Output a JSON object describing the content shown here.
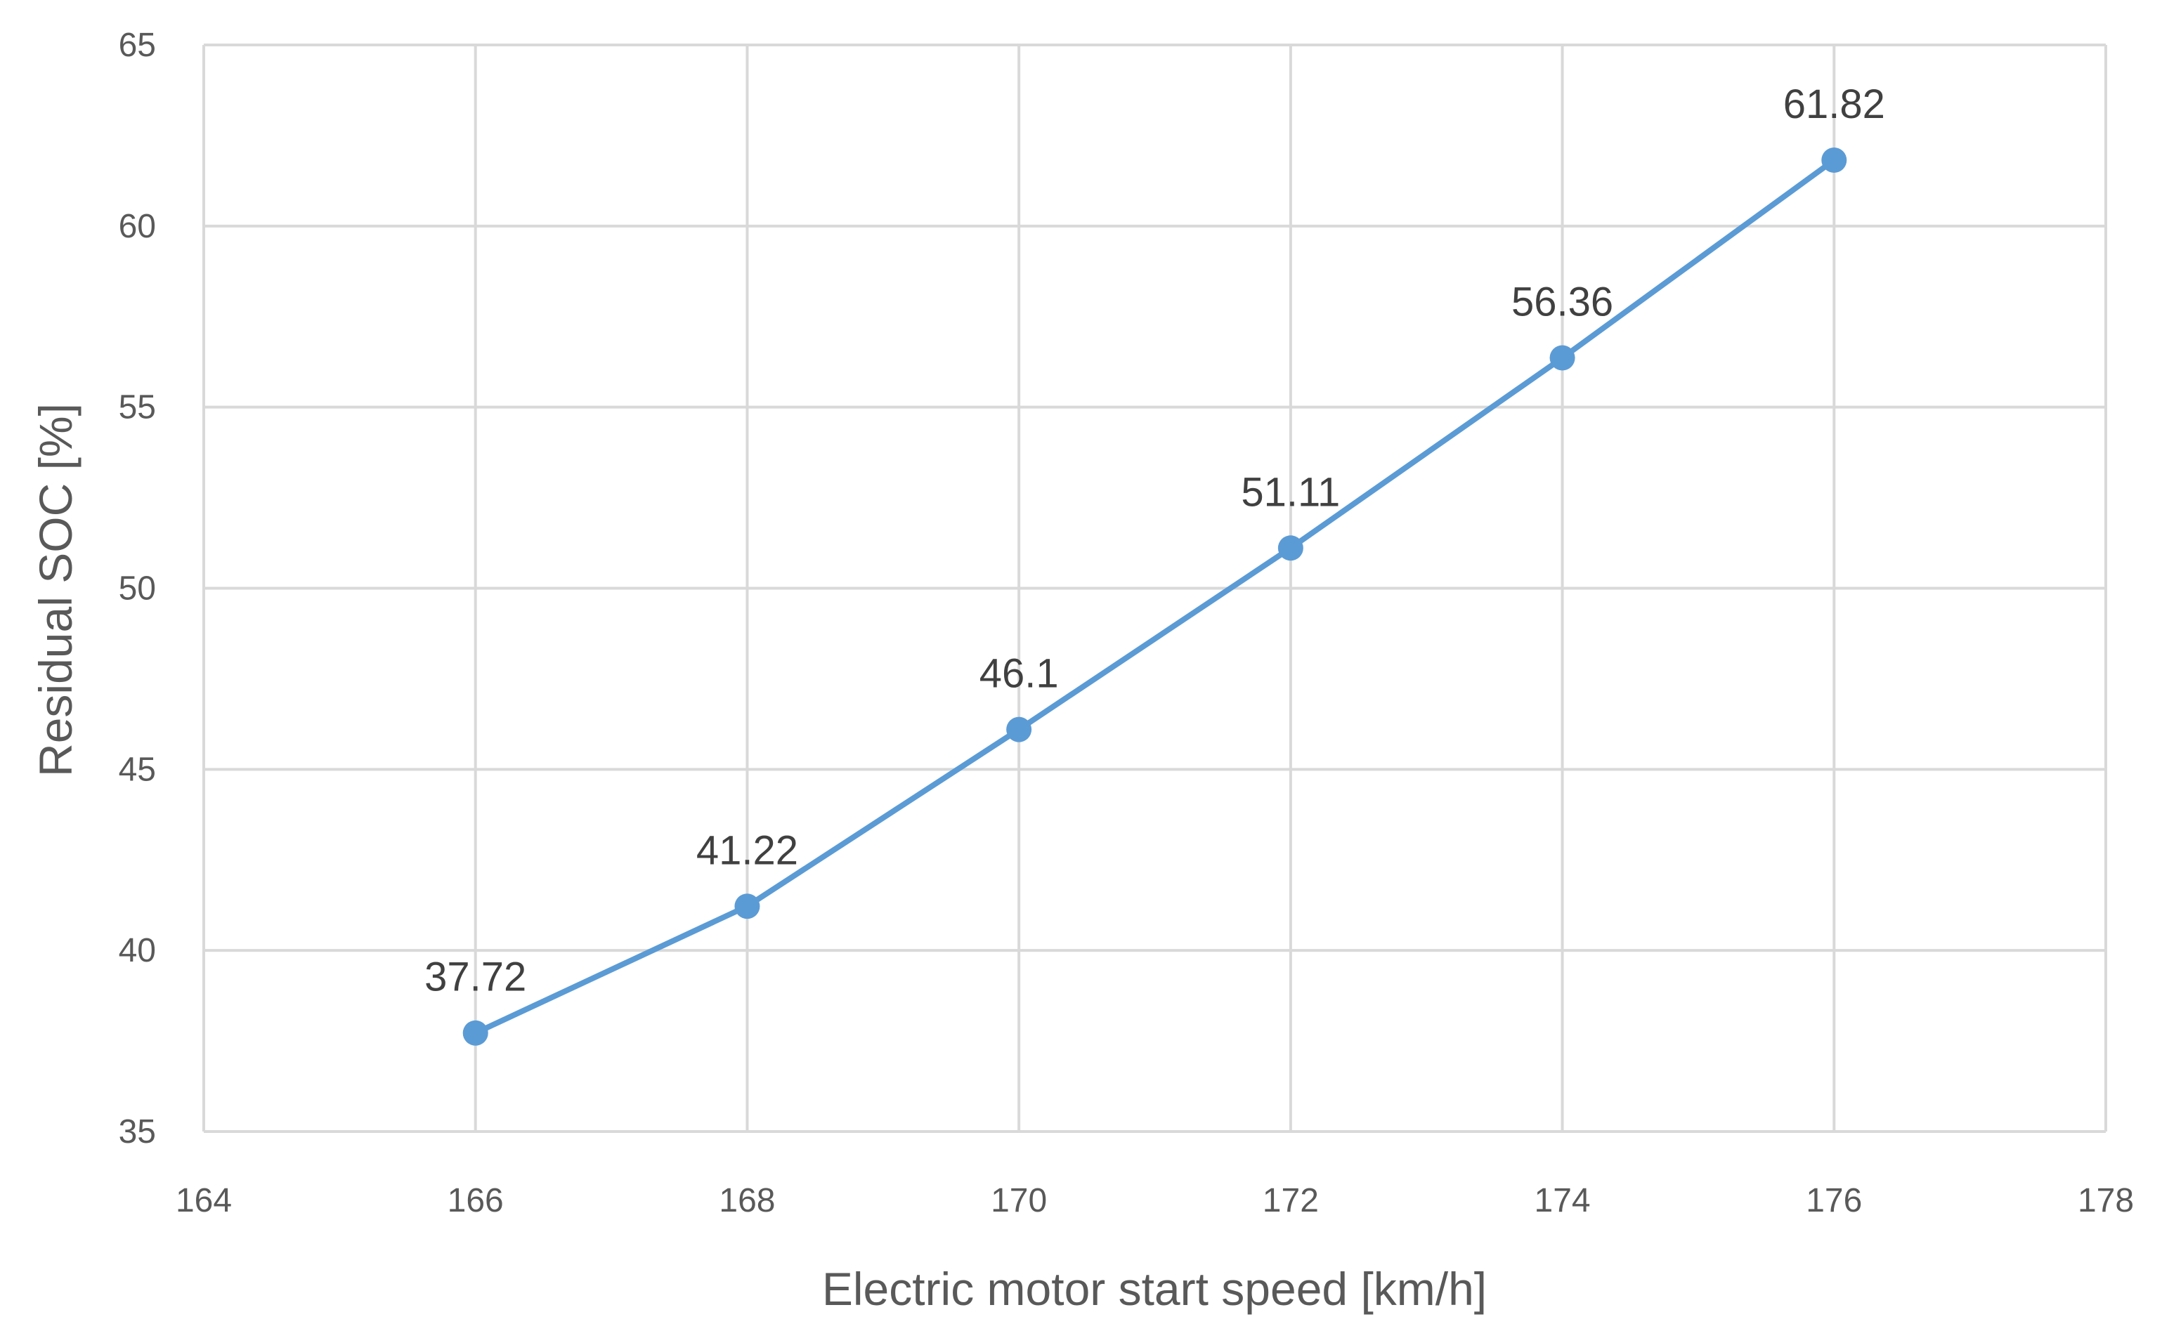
{
  "chart_data": {
    "type": "line",
    "title": "",
    "xlabel": "Electric motor start speed [km/h]",
    "ylabel": "Residual SOC [%]",
    "xlim": [
      164,
      178
    ],
    "ylim": [
      35,
      65
    ],
    "x_ticks": [
      164,
      166,
      168,
      170,
      172,
      174,
      176,
      178
    ],
    "y_ticks": [
      35,
      40,
      45,
      50,
      55,
      60,
      65
    ],
    "grid": true,
    "legend": "none",
    "series": [
      {
        "color": "#5b9bd5",
        "x": [
          166,
          168,
          170,
          172,
          174,
          176
        ],
        "y": [
          37.72,
          41.22,
          46.1,
          51.11,
          56.36,
          61.82
        ],
        "labels": [
          "37.72",
          "41.22",
          "46.1",
          "51.11",
          "56.36",
          "61.82"
        ]
      }
    ]
  }
}
